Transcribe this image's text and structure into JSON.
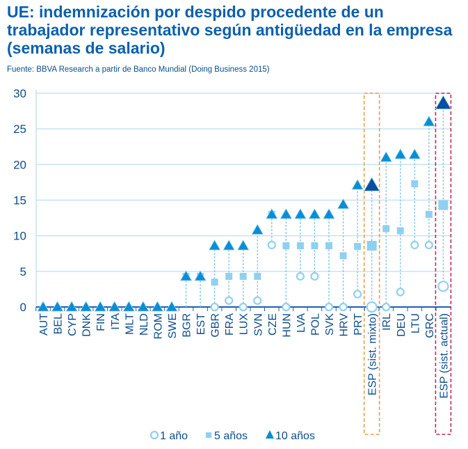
{
  "title": "UE: indemnización por despido procedente de un trabajador representativo según antigüedad en la empresa (semanas de salario)",
  "source": "Fuente: BBVA Research a partir de Banco Mundial (Doing Business 2015)",
  "chart_data": {
    "type": "scatter",
    "title": "UE: indemnización por despido procedente de un trabajador representativo según antigüedad en la empresa (semanas de salario)",
    "ylim": [
      0,
      30
    ],
    "yticks": [
      "0",
      "5",
      "10",
      "15",
      "20",
      "25",
      "30"
    ],
    "categories": [
      "AUT",
      "BEL",
      "CYP",
      "DNK",
      "FIN",
      "ITA",
      "MLT",
      "NLD",
      "ROM",
      "SWE",
      "BGR",
      "EST",
      "GBR",
      "FRA",
      "LUX",
      "SVN",
      "CZE",
      "HUN",
      "LVA",
      "POL",
      "SVK",
      "HRV",
      "PRT",
      "ESP (sist. mixto)",
      "IRL",
      "DEU",
      "LTU",
      "GRC",
      "ESP (sist. actual)"
    ],
    "highlighted": {
      "ESP (sist. mixto)": "#e8a04a",
      "ESP (sist. actual)": "#c0285a"
    },
    "series": [
      {
        "name": "1 año",
        "marker": "circle",
        "values": [
          0,
          0,
          0,
          0,
          0,
          0,
          0,
          0,
          0,
          0,
          0,
          0,
          0,
          0.9,
          0,
          0.9,
          8.7,
          0,
          4.3,
          4.3,
          0,
          0,
          1.8,
          0,
          0,
          2.1,
          8.7,
          8.7,
          2.9
        ]
      },
      {
        "name": "5 años",
        "marker": "square",
        "values": [
          0,
          0,
          0,
          0,
          0,
          0,
          0,
          0,
          0,
          0,
          4.3,
          4.3,
          3.5,
          4.3,
          4.3,
          4.3,
          13,
          8.6,
          8.6,
          8.6,
          8.6,
          7.2,
          8.5,
          8.6,
          11,
          10.7,
          17.3,
          13,
          14.3
        ]
      },
      {
        "name": "10 años",
        "marker": "triangle",
        "values": [
          0,
          0,
          0,
          0,
          0,
          0,
          0,
          0,
          0,
          0,
          4.3,
          4.3,
          8.6,
          8.6,
          8.6,
          10.8,
          13,
          13,
          13,
          13,
          13,
          14.4,
          17.1,
          17.1,
          21,
          21.4,
          21.4,
          26,
          28.6
        ]
      }
    ],
    "legend": "bottom",
    "grid": true
  }
}
